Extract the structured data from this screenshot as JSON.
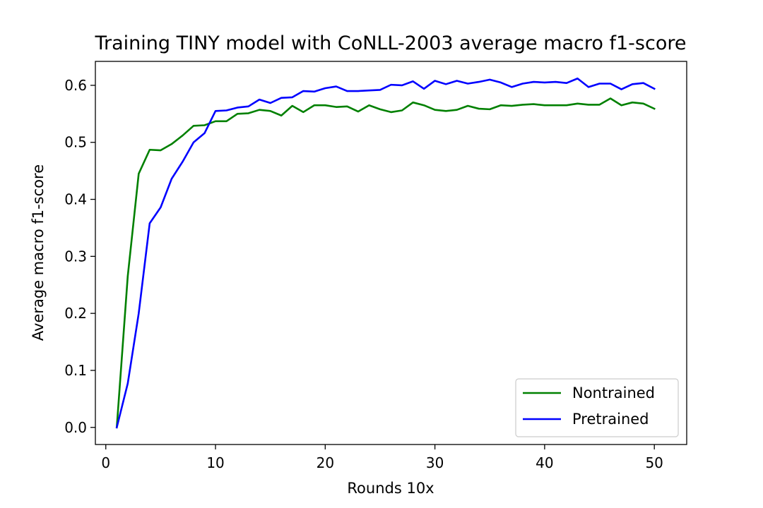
{
  "chart_data": {
    "type": "line",
    "title": "Training TINY model with CoNLL-2003 average macro f1-score",
    "xlabel": "Rounds 10x",
    "ylabel": "Average macro f1-score",
    "xlim": [
      -0.95,
      52.95
    ],
    "ylim": [
      -0.03,
      0.642
    ],
    "xticks": [
      0,
      10,
      20,
      30,
      40,
      50
    ],
    "xtick_labels": [
      "0",
      "10",
      "20",
      "30",
      "40",
      "50"
    ],
    "yticks": [
      0.0,
      0.1,
      0.2,
      0.3,
      0.4,
      0.5,
      0.6
    ],
    "ytick_labels": [
      "0.0",
      "0.1",
      "0.2",
      "0.3",
      "0.4",
      "0.5",
      "0.6"
    ],
    "grid": false,
    "legend_position": "lower-right",
    "x": [
      1,
      2,
      3,
      4,
      5,
      6,
      7,
      8,
      9,
      10,
      11,
      12,
      13,
      14,
      15,
      16,
      17,
      18,
      19,
      20,
      21,
      22,
      23,
      24,
      25,
      26,
      27,
      28,
      29,
      30,
      31,
      32,
      33,
      34,
      35,
      36,
      37,
      38,
      39,
      40,
      41,
      42,
      43,
      44,
      45,
      46,
      47,
      48,
      49,
      50
    ],
    "series": [
      {
        "name": "Nontrained",
        "color": "#008000",
        "values": [
          0.0,
          0.265,
          0.445,
          0.487,
          0.486,
          0.497,
          0.512,
          0.529,
          0.53,
          0.537,
          0.537,
          0.55,
          0.551,
          0.557,
          0.555,
          0.547,
          0.564,
          0.553,
          0.565,
          0.565,
          0.562,
          0.563,
          0.554,
          0.565,
          0.558,
          0.553,
          0.556,
          0.57,
          0.565,
          0.557,
          0.555,
          0.557,
          0.564,
          0.559,
          0.558,
          0.565,
          0.564,
          0.566,
          0.567,
          0.565,
          0.565,
          0.565,
          0.568,
          0.566,
          0.566,
          0.577,
          0.565,
          0.57,
          0.568,
          0.559
        ]
      },
      {
        "name": "Pretrained",
        "color": "#0000ff",
        "values": [
          0.0,
          0.077,
          0.2,
          0.358,
          0.386,
          0.436,
          0.466,
          0.5,
          0.516,
          0.555,
          0.556,
          0.561,
          0.563,
          0.575,
          0.569,
          0.578,
          0.579,
          0.59,
          0.589,
          0.595,
          0.598,
          0.59,
          0.59,
          0.591,
          0.592,
          0.601,
          0.6,
          0.607,
          0.594,
          0.608,
          0.602,
          0.608,
          0.603,
          0.606,
          0.61,
          0.605,
          0.597,
          0.603,
          0.606,
          0.605,
          0.606,
          0.604,
          0.612,
          0.597,
          0.603,
          0.603,
          0.593,
          0.602,
          0.604,
          0.594
        ]
      }
    ]
  }
}
